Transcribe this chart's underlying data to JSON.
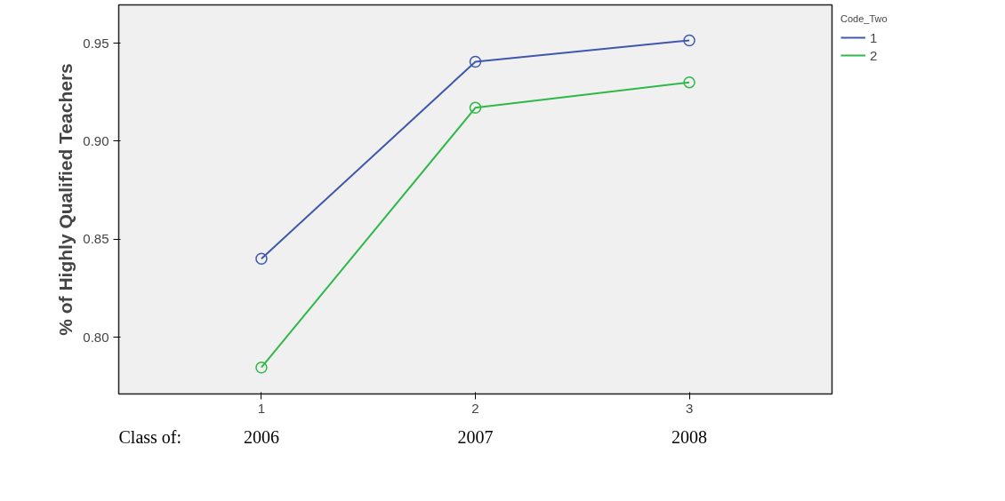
{
  "chart_data": {
    "type": "line",
    "ylabel": "% of Highly Qualified Teachers",
    "legend_title": "Code_Two",
    "legend": "top right",
    "marker": "circle",
    "line_style": "solid",
    "grid": false,
    "x": [
      1,
      2,
      3
    ],
    "xlim": [
      0.333,
      3.667
    ],
    "xticks": [
      1,
      2,
      3
    ],
    "ylim": [
      0.771,
      0.9695
    ],
    "yticks": [
      {
        "value": 0.8,
        "label": "0.80"
      },
      {
        "value": 0.85,
        "label": "0.85"
      },
      {
        "value": 0.9,
        "label": "0.90"
      },
      {
        "value": 0.95,
        "label": "0.95"
      }
    ],
    "series": [
      {
        "name": "1",
        "color": "#3e58ac",
        "values": [
          0.84,
          0.9405,
          0.9514
        ]
      },
      {
        "name": "2",
        "color": "#2eb848",
        "values": [
          0.7845,
          0.917,
          0.93
        ]
      }
    ],
    "annotations": [
      "Class of:",
      "2006",
      "2007",
      "2008"
    ]
  }
}
